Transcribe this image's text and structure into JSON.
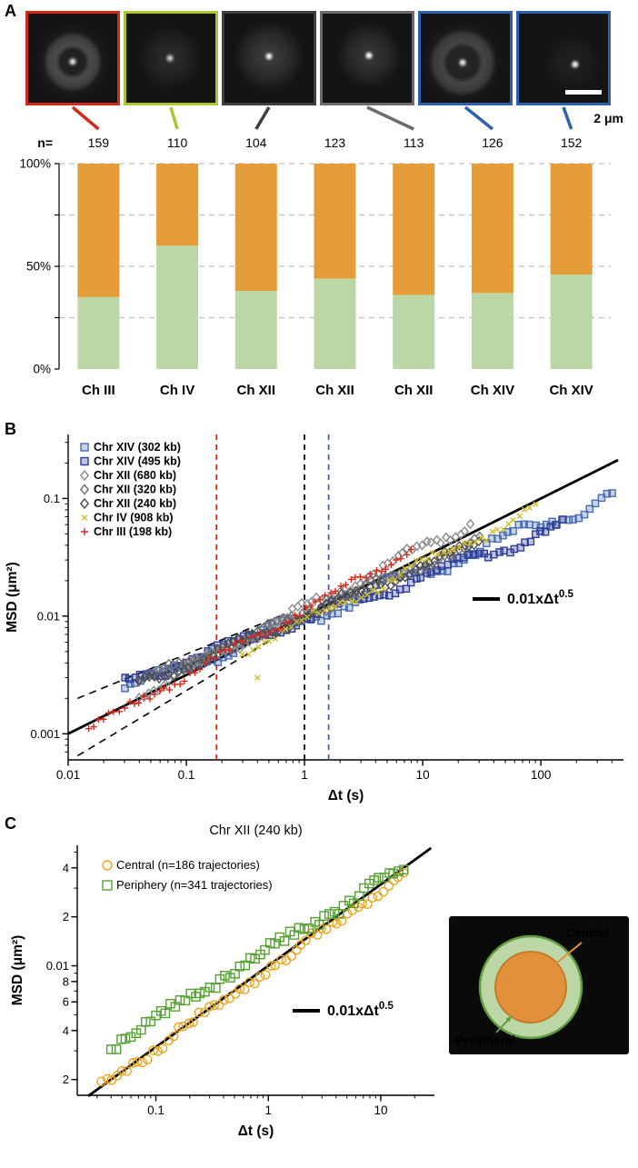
{
  "panels": {
    "a": {
      "label": "A",
      "scale_bar_label": "2 μm",
      "n_prefix": "n=",
      "images": [
        {
          "name": "nucleus-ch3",
          "border_color": "#cf2a1b",
          "leader_target_bar": 0
        },
        {
          "name": "nucleus-ch4",
          "border_color": "#aec431",
          "leader_target_bar": 1
        },
        {
          "name": "nucleus-ch12a",
          "border_color": "#3f3f3f",
          "leader_target_bar": 2
        },
        {
          "name": "nucleus-ch12b",
          "border_color": "#6b6b6b",
          "leader_target_bar": 4
        },
        {
          "name": "nucleus-ch14a",
          "border_color": "#2e62b1",
          "leader_target_bar": 5
        },
        {
          "name": "nucleus-ch14b",
          "border_color": "#2e62b1",
          "leader_target_bar": 6
        }
      ]
    },
    "b": {
      "label": "B"
    },
    "c": {
      "label": "C"
    }
  },
  "chart_data": [
    {
      "id": "locus-position-bars",
      "type": "bar",
      "stacked": true,
      "categories": [
        {
          "label": "Ch III",
          "color": "#cf2a1b"
        },
        {
          "label": "Ch IV",
          "color": "#a8bf2e"
        },
        {
          "label": "Ch XII",
          "color": "#4d4d4d"
        },
        {
          "label": "Ch XII",
          "color": "#4d4d4d"
        },
        {
          "label": "Ch XII",
          "color": "#4d4d4d"
        },
        {
          "label": "Ch XIV",
          "color": "#2e62b1"
        },
        {
          "label": "Ch XIV",
          "color": "#2e62b1"
        }
      ],
      "n_values": [
        159,
        110,
        104,
        123,
        113,
        126,
        152
      ],
      "series": [
        {
          "name": "central-green",
          "color": "#bcd7a6",
          "values": [
            35,
            60,
            38,
            44,
            36,
            37,
            46
          ]
        },
        {
          "name": "peripheral-orange",
          "color": "#e59d3a",
          "values": [
            65,
            40,
            62,
            56,
            64,
            63,
            54
          ]
        }
      ],
      "ylim": [
        0,
        100
      ],
      "yticks": [
        {
          "v": 0,
          "label": "0%"
        },
        {
          "v": 25,
          "label": ""
        },
        {
          "v": 50,
          "label": "50%"
        },
        {
          "v": 75,
          "label": ""
        },
        {
          "v": 100,
          "label": "100%"
        }
      ],
      "grid": "dashed-horizontal"
    },
    {
      "id": "msd-all-loci",
      "type": "scatter",
      "xscale": "log",
      "yscale": "log",
      "xlabel": "Δt (s)",
      "ylabel": "MSD (μm²)",
      "xlim": [
        0.01,
        500
      ],
      "ylim": [
        0.0006,
        0.35
      ],
      "xticks": [
        {
          "v": 0.01,
          "label": "0.01"
        },
        {
          "v": 0.1,
          "label": "0.1"
        },
        {
          "v": 1,
          "label": "1"
        },
        {
          "v": 10,
          "label": "10"
        },
        {
          "v": 100,
          "label": "100"
        }
      ],
      "yticks": [
        {
          "v": 0.001,
          "label": "0.001"
        },
        {
          "v": 0.01,
          "label": "0.01"
        },
        {
          "v": 0.1,
          "label": "0.1"
        }
      ],
      "legend_position": "top-left",
      "series": [
        {
          "name": "Chr XIV (302 kb)",
          "marker": "square",
          "color": "#4a6cb3",
          "powerlaw": {
            "A": 0.0095,
            "alpha": 0.4
          },
          "t_range": [
            0.03,
            400
          ],
          "n_points": 90,
          "wiggle": 0.06
        },
        {
          "name": "Chr XIV (495 kb)",
          "marker": "square",
          "color": "#2f3f97",
          "powerlaw": {
            "A": 0.0095,
            "alpha": 0.36
          },
          "t_range": [
            0.03,
            150
          ],
          "n_points": 85,
          "wiggle": 0.045
        },
        {
          "name": "Chr XII (680 kb)",
          "marker": "diamond",
          "color": "#8c8c8c",
          "powerlaw": {
            "A": 0.0115,
            "alpha": 0.52
          },
          "t_range": [
            0.04,
            25
          ],
          "n_points": 70,
          "wiggle": 0.04
        },
        {
          "name": "Chr XII (320 kb)",
          "marker": "diamond",
          "color": "#6f6f6f",
          "powerlaw": {
            "A": 0.0105,
            "alpha": 0.42
          },
          "t_range": [
            0.04,
            30
          ],
          "n_points": 70,
          "wiggle": 0.035
        },
        {
          "name": "Chr XII (240 kb)",
          "marker": "diamond",
          "color": "#4d4d4d",
          "powerlaw": {
            "A": 0.01,
            "alpha": 0.42
          },
          "t_range": [
            0.04,
            30
          ],
          "n_points": 70,
          "wiggle": 0.035
        },
        {
          "name": "Chr IV (908 kb)",
          "marker": "x",
          "color": "#cfbe2a",
          "powerlaw": {
            "A": 0.009,
            "alpha": 0.49
          },
          "t_range": [
            0.3,
            90
          ],
          "n_points": 55,
          "wiggle": 0.04,
          "extra_points": [
            [
              0.4,
              0.003
            ]
          ]
        },
        {
          "name": "Chr III (198 kb)",
          "marker": "plus",
          "color": "#d5281c",
          "powerlaw": {
            "A": 0.0115,
            "alpha": 0.56
          },
          "t_range": [
            0.015,
            8
          ],
          "n_points": 65,
          "wiggle": 0.03
        }
      ],
      "fit_line": {
        "A": 0.01,
        "alpha": 0.5,
        "t_range": [
          0.01,
          450
        ],
        "label": "0.01xΔt",
        "label_sup": "0.5"
      },
      "dashed_guides": [
        {
          "from": [
            0.012,
            0.002
          ],
          "to": [
            0.7,
            0.0105
          ]
        },
        {
          "from": [
            0.012,
            0.00065
          ],
          "to": [
            0.7,
            0.0075
          ]
        }
      ],
      "vlines": [
        {
          "t": 0.18,
          "color": "#d5281c"
        },
        {
          "t": 1.0,
          "color": "#000000"
        },
        {
          "t": 1.6,
          "color": "#2e62b1"
        }
      ]
    },
    {
      "id": "msd-chr12-240",
      "type": "scatter",
      "title": "Chr XII (240 kb)",
      "xscale": "log",
      "yscale": "log",
      "xlabel": "Δt (s)",
      "ylabel": "MSD (μm²)",
      "xlim": [
        0.02,
        30
      ],
      "ylim": [
        0.0016,
        0.055
      ],
      "xticks": [
        {
          "v": 0.1,
          "label": "0.1"
        },
        {
          "v": 1,
          "label": "1"
        },
        {
          "v": 10,
          "label": "10"
        }
      ],
      "yticks": [
        {
          "v": 0.002,
          "label": "2"
        },
        {
          "v": 0.004,
          "label": "4"
        },
        {
          "v": 0.006,
          "label": "6"
        },
        {
          "v": 0.008,
          "label": "8"
        },
        {
          "v": 0.01,
          "label": "0.01"
        },
        {
          "v": 0.02,
          "label": "2"
        },
        {
          "v": 0.04,
          "label": "4"
        }
      ],
      "series": [
        {
          "name": "Central (n=186 trajectories)",
          "marker": "circle",
          "color": "#e8a51e",
          "powerlaw": {
            "A": 0.0095,
            "alpha": 0.48
          },
          "t_range": [
            0.033,
            16
          ],
          "n_points": 60,
          "wiggle": 0.02
        },
        {
          "name": "Periphery (n=341 trajectories)",
          "marker": "square",
          "color": "#55a033",
          "powerlaw": {
            "A": 0.0125,
            "alpha": 0.42
          },
          "t_range": [
            0.04,
            16
          ],
          "n_points": 60,
          "wiggle": 0.02
        }
      ],
      "fit_line": {
        "A": 0.01,
        "alpha": 0.5,
        "t_range": [
          0.025,
          28
        ],
        "label": "0.01xΔt",
        "label_sup": "0.5"
      },
      "inset": {
        "bg": "#0a0a0a",
        "ring_fill": "#bcd7a6",
        "ring_stroke": "#5f9c3e",
        "center_fill": "#e2913a",
        "center_stroke": "#c47a28",
        "central_label": "Central",
        "peripheral_label": "Peripheral"
      }
    }
  ]
}
